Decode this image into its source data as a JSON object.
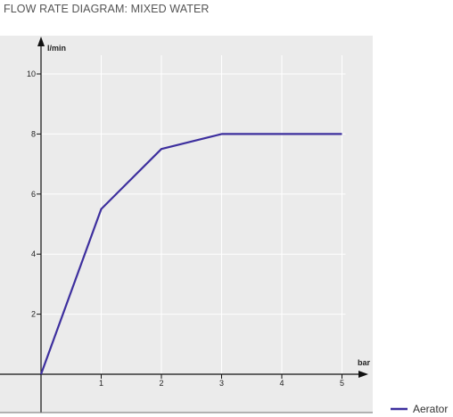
{
  "chart_data": {
    "type": "line",
    "title": "FLOW RATE DIAGRAM: MIXED WATER",
    "xlabel": "bar",
    "ylabel": "l/min",
    "x": [
      0,
      1,
      2,
      3,
      4,
      5
    ],
    "xticks": [
      "1",
      "2",
      "3",
      "4",
      "5"
    ],
    "yticks": [
      "2",
      "4",
      "6",
      "8",
      "10"
    ],
    "xlim": [
      0,
      5
    ],
    "ylim": [
      0,
      10
    ],
    "grid": true,
    "legend_position": "bottom-right",
    "series": [
      {
        "name": "Aerator",
        "values": [
          0,
          5.5,
          7.5,
          8,
          8,
          8
        ],
        "color": "#3d2f9e"
      }
    ],
    "colors": {
      "plot_background": "#ebebeb",
      "grid": "#ffffff",
      "axis": "#111111"
    }
  }
}
